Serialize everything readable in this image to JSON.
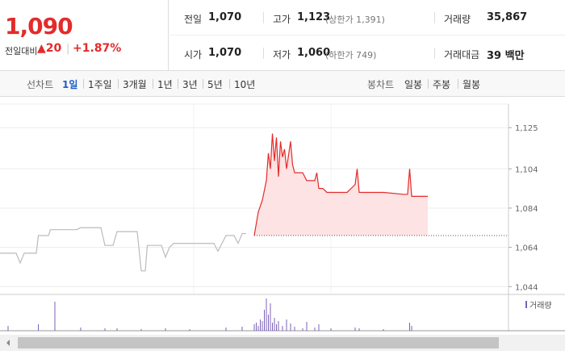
{
  "header": {
    "price": "1,090",
    "change_label": "전일대비",
    "change": "▲20",
    "change_pct": "+1.87%",
    "rows": [
      [
        {
          "label": "전일",
          "value": "1,070"
        },
        {
          "label": "고가",
          "value": "1,123",
          "note": "(상한가 1,391)"
        },
        {
          "label": "거래량",
          "value": "35,867"
        }
      ],
      [
        {
          "label": "시가",
          "value": "1,070"
        },
        {
          "label": "저가",
          "value": "1,060",
          "note": "(하한가 749)"
        },
        {
          "label": "거래대금",
          "value": "39 백만"
        }
      ]
    ]
  },
  "tabs": {
    "line_title": "선차트",
    "line": [
      "1일",
      "1주일",
      "3개월",
      "1년",
      "3년",
      "5년",
      "10년"
    ],
    "line_active": 0,
    "candle_title": "봉차트",
    "candle": [
      "일봉",
      "주봉",
      "월봉"
    ]
  },
  "chart_data": [
    {
      "type": "line",
      "xlim": [
        0,
        126
      ],
      "ylim": [
        1040,
        1137
      ],
      "yticks": [
        {
          "value": 1044,
          "label": "1,044"
        },
        {
          "value": 1064,
          "label": "1,064"
        },
        {
          "value": 1084,
          "label": "1,084"
        },
        {
          "value": 1104,
          "label": "1,104"
        },
        {
          "value": 1125,
          "label": "1,125"
        }
      ],
      "grid": true,
      "baseline": 1070,
      "baseline_color": "#555555",
      "area_color": "#fde3e3",
      "series": [
        {
          "color": "#bbbbbb",
          "x": [
            0,
            4,
            5,
            6,
            9,
            9.5,
            12,
            12.5,
            19,
            20,
            25,
            26,
            28,
            29,
            34,
            35,
            36,
            36.5,
            40,
            41,
            42,
            43,
            53,
            54,
            55,
            56,
            58,
            59,
            60,
            61
          ],
          "values": [
            1061,
            1061,
            1056,
            1061,
            1061,
            1070,
            1070,
            1073,
            1073,
            1074,
            1074,
            1065,
            1065,
            1072,
            1072,
            1052,
            1052,
            1065,
            1065,
            1059,
            1064,
            1066,
            1066,
            1062,
            1066,
            1070,
            1070,
            1066,
            1071,
            1071
          ]
        },
        {
          "color": "#e32b2b",
          "area": true,
          "x": [
            63,
            63.5,
            64,
            65,
            66,
            66.5,
            67,
            67.5,
            68,
            68.5,
            69,
            69.5,
            70,
            70.5,
            71,
            72,
            72.5,
            73,
            75,
            76,
            78,
            78.5,
            79,
            80,
            81,
            86,
            87,
            88,
            88.5,
            89,
            95,
            100,
            101,
            101.5,
            102,
            106
          ],
          "values": [
            1070,
            1076,
            1082,
            1088,
            1098,
            1112,
            1104,
            1122,
            1108,
            1120,
            1100,
            1118,
            1110,
            1114,
            1104,
            1118,
            1106,
            1102,
            1102,
            1098,
            1098,
            1102,
            1094,
            1094,
            1092,
            1092,
            1094,
            1096,
            1104,
            1092,
            1092,
            1091,
            1091,
            1104,
            1090,
            1090
          ]
        }
      ]
    },
    {
      "type": "bar",
      "xlim": [
        0,
        126
      ],
      "ylim": [
        0,
        40
      ],
      "legend": "거래량",
      "color": "#7b62b8",
      "x": [
        2,
        9.5,
        13.6,
        20,
        26,
        29,
        35,
        41,
        47,
        56,
        60,
        63,
        63.5,
        64,
        64.5,
        65,
        65.5,
        66,
        66.5,
        67,
        67.5,
        68,
        68.5,
        69,
        70,
        71,
        72,
        73,
        75,
        76,
        78,
        79,
        82,
        88,
        89,
        95,
        101.5,
        102
      ],
      "values": [
        6,
        8,
        36,
        4,
        3,
        3,
        2,
        3,
        2,
        4,
        5,
        8,
        10,
        6,
        14,
        12,
        26,
        40,
        20,
        34,
        10,
        16,
        8,
        12,
        6,
        14,
        9,
        5,
        3,
        11,
        4,
        8,
        3,
        4,
        3,
        2,
        10,
        6
      ]
    }
  ]
}
